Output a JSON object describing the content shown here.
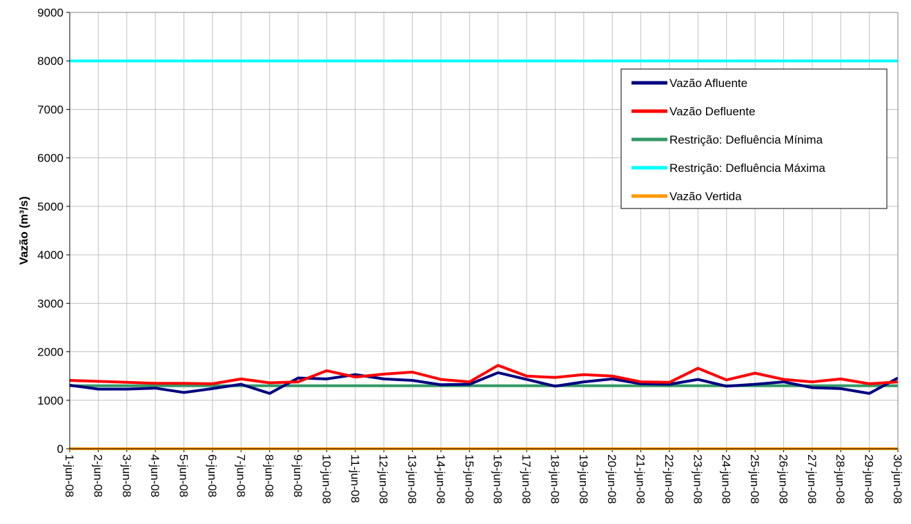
{
  "chart_data": {
    "type": "line",
    "title": "",
    "xlabel": "",
    "ylabel": "Vazão (m³/s)",
    "ylim": [
      0,
      9000
    ],
    "yticks": [
      "0",
      "1000",
      "2000",
      "3000",
      "4000",
      "5000",
      "6000",
      "7000",
      "8000",
      "9000"
    ],
    "grid": true,
    "legend_position": "top-right",
    "categories": [
      "1-jun-08",
      "2-jun-08",
      "3-jun-08",
      "4-jun-08",
      "5-jun-08",
      "6-jun-08",
      "7-jun-08",
      "8-jun-08",
      "9-jun-08",
      "10-jun-08",
      "11-jun-08",
      "12-jun-08",
      "13-jun-08",
      "14-jun-08",
      "15-jun-08",
      "16-jun-08",
      "17-jun-08",
      "18-jun-08",
      "19-jun-08",
      "20-jun-08",
      "21-jun-08",
      "22-jun-08",
      "23-jun-08",
      "24-jun-08",
      "25-jun-08",
      "26-jun-08",
      "27-jun-08",
      "28-jun-08",
      "29-jun-08",
      "30-jun-08"
    ],
    "series": [
      {
        "name": "Vazão Afluente",
        "color": "#000080",
        "values": [
          1310,
          1230,
          1230,
          1250,
          1160,
          1240,
          1330,
          1140,
          1460,
          1440,
          1530,
          1440,
          1410,
          1320,
          1330,
          1570,
          1430,
          1290,
          1380,
          1440,
          1340,
          1330,
          1430,
          1290,
          1330,
          1380,
          1260,
          1240,
          1140,
          1460
        ]
      },
      {
        "name": "Vazão Defluente",
        "color": "#ff0000",
        "values": [
          1410,
          1390,
          1370,
          1350,
          1350,
          1340,
          1440,
          1360,
          1380,
          1610,
          1480,
          1540,
          1580,
          1430,
          1380,
          1720,
          1500,
          1470,
          1530,
          1500,
          1380,
          1370,
          1660,
          1420,
          1560,
          1430,
          1380,
          1440,
          1340,
          1380
        ]
      },
      {
        "name": "Restrição: Defluência Mínima",
        "color": "#339966",
        "values": [
          1300,
          1300,
          1300,
          1300,
          1300,
          1300,
          1300,
          1300,
          1300,
          1300,
          1300,
          1300,
          1300,
          1300,
          1300,
          1300,
          1300,
          1300,
          1300,
          1300,
          1300,
          1300,
          1300,
          1300,
          1300,
          1300,
          1300,
          1300,
          1300,
          1300
        ]
      },
      {
        "name": "Restrição: Defluência Máxima",
        "color": "#00ffff",
        "values": [
          8000,
          8000,
          8000,
          8000,
          8000,
          8000,
          8000,
          8000,
          8000,
          8000,
          8000,
          8000,
          8000,
          8000,
          8000,
          8000,
          8000,
          8000,
          8000,
          8000,
          8000,
          8000,
          8000,
          8000,
          8000,
          8000,
          8000,
          8000,
          8000,
          8000
        ]
      },
      {
        "name": "Vazão Vertida",
        "color": "#ff9900",
        "values": [
          0,
          0,
          0,
          0,
          0,
          0,
          0,
          0,
          0,
          0,
          0,
          0,
          0,
          0,
          0,
          0,
          0,
          0,
          0,
          0,
          0,
          0,
          0,
          0,
          0,
          0,
          0,
          0,
          0,
          0
        ]
      }
    ]
  }
}
